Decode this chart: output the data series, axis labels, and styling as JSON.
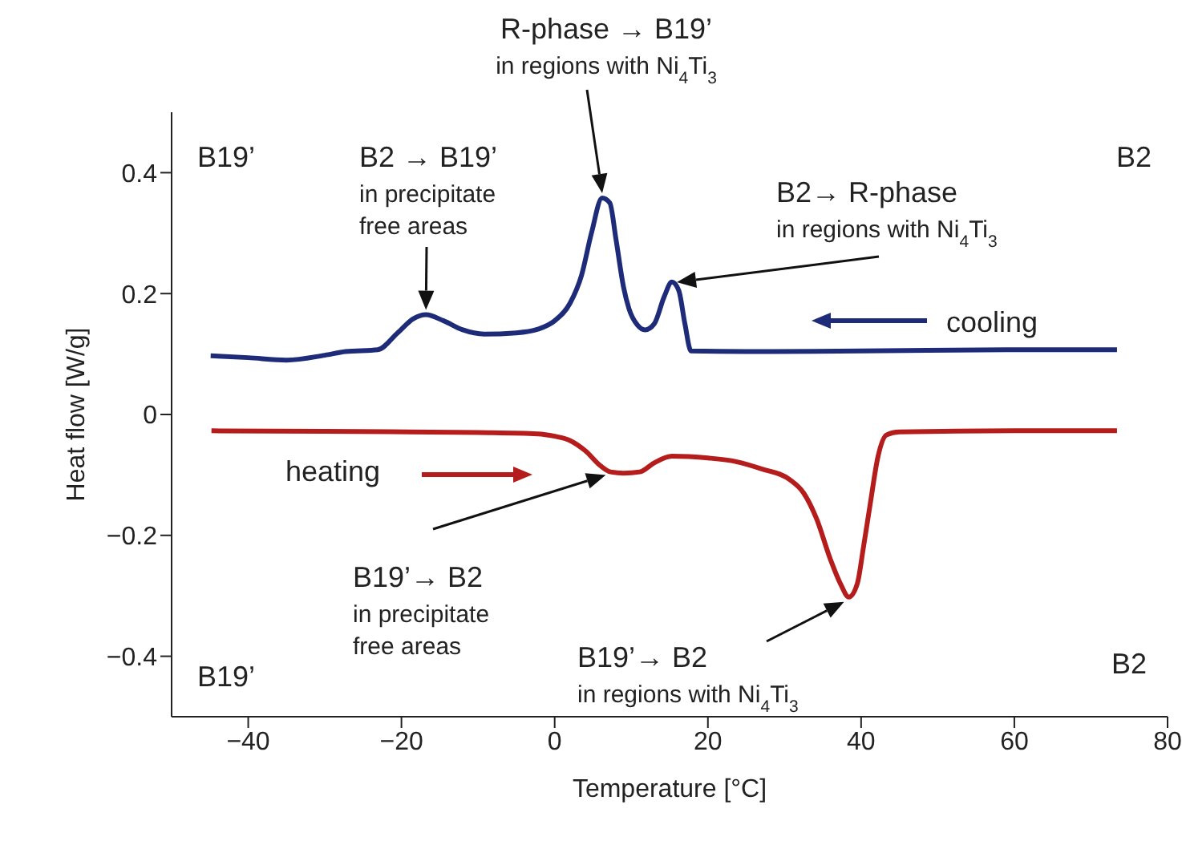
{
  "chart_data": {
    "type": "line",
    "xlabel": "Temperature [°C]",
    "ylabel": "Heat flow [W/g]",
    "xlim": [
      -50,
      80
    ],
    "xticks": [
      {
        "value": -40,
        "label": "−40"
      },
      {
        "value": -20,
        "label": "−20"
      },
      0,
      20,
      40,
      60,
      80
    ],
    "ylim": [
      -0.5,
      0.5
    ],
    "yticks": [
      {
        "value": -0.4,
        "label": "−0.4"
      },
      {
        "value": -0.2,
        "label": "−0.2"
      },
      0,
      0.2,
      0.4
    ],
    "marker": "none",
    "line_style": "solid",
    "series": [
      {
        "color": "#1e2b78",
        "x": [
          -44.9,
          -40,
          -35,
          -30,
          -27.3,
          -23.1,
          -20.5,
          -18.5,
          -16.8,
          -14.5,
          -12,
          -9.2,
          -5,
          -2.2,
          0,
          2,
          3.5,
          4.8,
          6.2,
          7.2,
          8,
          9,
          9.7,
          10.8,
          11.8,
          13,
          14.3,
          15.3,
          16.2,
          17,
          17.8,
          25,
          40,
          60,
          73.4
        ],
        "values": [
          0.097,
          0.094,
          0.09,
          0.098,
          0.104,
          0.107,
          0.135,
          0.158,
          0.165,
          0.155,
          0.14,
          0.133,
          0.135,
          0.141,
          0.155,
          0.184,
          0.23,
          0.3,
          0.358,
          0.35,
          0.29,
          0.21,
          0.175,
          0.148,
          0.14,
          0.15,
          0.195,
          0.219,
          0.205,
          0.15,
          0.105,
          0.104,
          0.105,
          0.107,
          0.107
        ]
      },
      {
        "color": "#b51d1d",
        "x": [
          -44.8,
          -30,
          -10,
          -2.2,
          0,
          2,
          4,
          6,
          7.3,
          9,
          11.1,
          13,
          15.3,
          20,
          23.7,
          27,
          30.7,
          32.5,
          34.2,
          36,
          37.3,
          38.4,
          39.5,
          40.3,
          41.2,
          42.2,
          43.3,
          45,
          60,
          73.4
        ],
        "values": [
          -0.027,
          -0.028,
          -0.03,
          -0.032,
          -0.036,
          -0.043,
          -0.06,
          -0.085,
          -0.095,
          -0.097,
          -0.095,
          -0.08,
          -0.069,
          -0.072,
          -0.078,
          -0.09,
          -0.108,
          -0.13,
          -0.173,
          -0.24,
          -0.28,
          -0.302,
          -0.28,
          -0.22,
          -0.147,
          -0.07,
          -0.034,
          -0.029,
          -0.027,
          -0.027
        ]
      }
    ],
    "annotations": [
      "B19’",
      "B2",
      {
        "text": "B2 → B19’\nin precipitate\nfree areas",
        "x": -16.8,
        "y": 0.165
      },
      "R-phase →  B19’\nin regions with Ni$_{4}$Ti$_{3}$",
      "B2→ R-phase\nin regions with Ni$_{4}$Ti$_{3}$",
      "cooling",
      "heating",
      "B19’→ B2\nin precipitate\nfree areas",
      {
        "text": "B19’→ B2\nin regions with Ni$_{4}$Ti$_{3}$",
        "x": 38.4,
        "y": -0.302
      },
      "B19’",
      "B2"
    ]
  }
}
